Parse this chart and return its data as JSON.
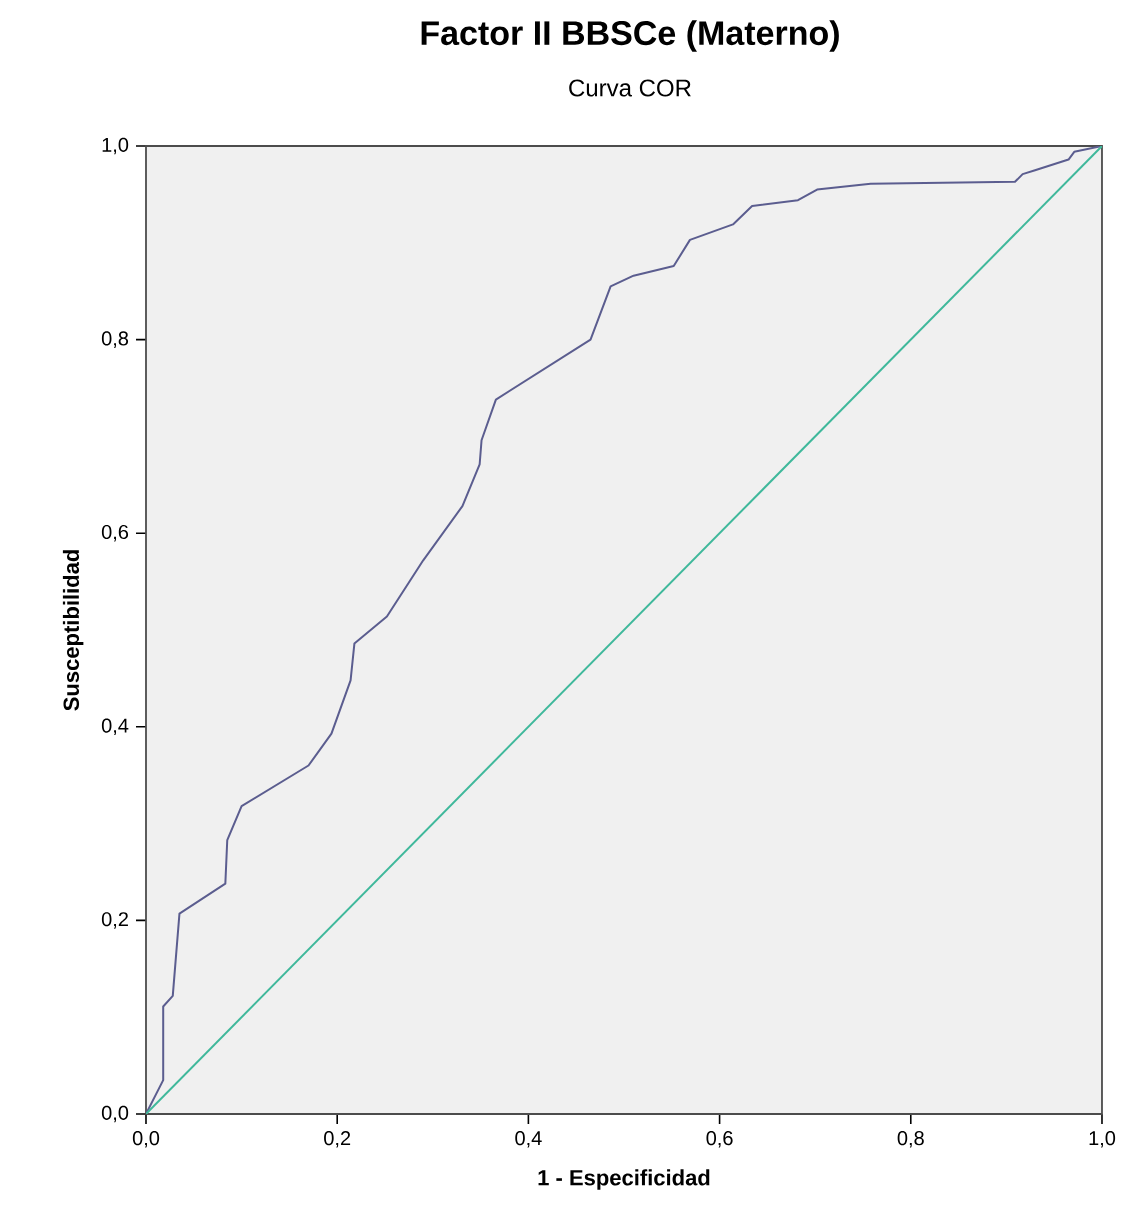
{
  "chart_data": {
    "type": "line",
    "title": "Factor II BBSCe (Materno)",
    "subtitle": "Curva COR",
    "xlabel": "1 - Especificidad",
    "ylabel": "Susceptibilidad",
    "xlim": [
      0,
      1
    ],
    "ylim": [
      0,
      1
    ],
    "xticks": [
      {
        "value": 0,
        "label": "0,0"
      },
      {
        "value": 0.2,
        "label": "0,2"
      },
      {
        "value": 0.4,
        "label": "0,4"
      },
      {
        "value": 0.6,
        "label": "0,6"
      },
      {
        "value": 0.8,
        "label": "0,8"
      },
      {
        "value": 1,
        "label": "1,0"
      }
    ],
    "yticks": [
      {
        "value": 0,
        "label": "0,0"
      },
      {
        "value": 0.2,
        "label": "0,2"
      },
      {
        "value": 0.4,
        "label": "0,4"
      },
      {
        "value": 0.6,
        "label": "0,6"
      },
      {
        "value": 0.8,
        "label": "0,8"
      },
      {
        "value": 1,
        "label": "1,0"
      }
    ],
    "marker": "none",
    "line_style": "solid",
    "series": [
      {
        "color": "#5b5d8f",
        "x": [
          0,
          0.018,
          0.018,
          0.028,
          0.035,
          0.083,
          0.085,
          0.1,
          0.17,
          0.194,
          0.214,
          0.218,
          0.252,
          0.29,
          0.331,
          0.349,
          0.351,
          0.366,
          0.465,
          0.486,
          0.51,
          0.552,
          0.569,
          0.614,
          0.634,
          0.682,
          0.702,
          0.758,
          0.909,
          0.917,
          0.93,
          0.965,
          0.971,
          1.0
        ],
        "values": [
          0,
          0.035,
          0.111,
          0.122,
          0.207,
          0.238,
          0.283,
          0.318,
          0.36,
          0.393,
          0.448,
          0.486,
          0.514,
          0.572,
          0.628,
          0.671,
          0.696,
          0.738,
          0.8,
          0.855,
          0.866,
          0.876,
          0.903,
          0.919,
          0.938,
          0.944,
          0.955,
          0.961,
          0.963,
          0.971,
          0.975,
          0.986,
          0.994,
          1.0
        ]
      },
      {
        "color": "#3fb89b",
        "x": [
          0,
          1
        ],
        "values": [
          0,
          1
        ]
      }
    ]
  }
}
